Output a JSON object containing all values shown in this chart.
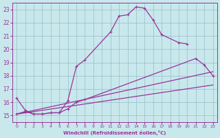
{
  "xlabel": "Windchill (Refroidissement éolien,°C)",
  "bg_color": "#c8e8ec",
  "line_color": "#993399",
  "grid_color": "#99bbcc",
  "xlim": [
    -0.5,
    23.5
  ],
  "ylim": [
    14.5,
    23.5
  ],
  "xticks": [
    0,
    1,
    2,
    3,
    4,
    5,
    6,
    7,
    8,
    9,
    10,
    11,
    12,
    13,
    14,
    15,
    16,
    17,
    18,
    19,
    20,
    21,
    22,
    23
  ],
  "yticks": [
    15,
    16,
    17,
    18,
    19,
    20,
    21,
    22,
    23
  ],
  "series": [
    {
      "x": [
        0,
        1,
        2,
        3,
        4,
        5,
        6,
        7,
        8,
        11,
        12,
        13,
        14,
        15,
        16,
        17,
        19,
        20
      ],
      "y": [
        16.3,
        15.4,
        15.1,
        15.1,
        15.2,
        15.2,
        16.1,
        18.7,
        19.2,
        21.3,
        22.5,
        22.6,
        23.2,
        23.1,
        22.2,
        21.1,
        20.5,
        20.4
      ],
      "marker": true
    },
    {
      "x": [
        0,
        1,
        2,
        3,
        4,
        5,
        6,
        7,
        8,
        21,
        22,
        23
      ],
      "y": [
        15.1,
        15.3,
        15.1,
        15.1,
        15.2,
        15.2,
        15.5,
        16.0,
        16.2,
        19.3,
        18.8,
        18.0
      ],
      "marker": true
    },
    {
      "x": [
        0,
        23
      ],
      "y": [
        15.1,
        18.3
      ],
      "marker": false
    },
    {
      "x": [
        0,
        23
      ],
      "y": [
        15.1,
        17.3
      ],
      "marker": false
    }
  ]
}
